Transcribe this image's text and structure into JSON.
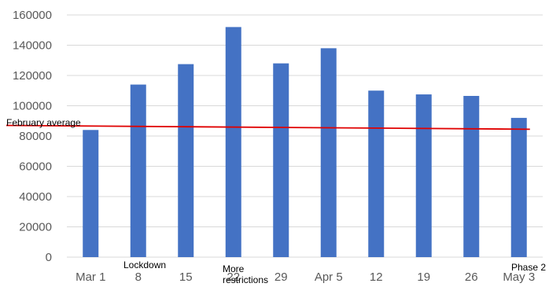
{
  "chart_data": {
    "type": "bar",
    "title": "",
    "xlabel": "",
    "ylabel": "",
    "categories": [
      "Mar 1",
      "8",
      "15",
      "22",
      "29",
      "Apr 5",
      "12",
      "19",
      "26",
      "May 3"
    ],
    "values": [
      84000,
      114000,
      127500,
      152000,
      128000,
      138000,
      110000,
      107500,
      106500,
      92000
    ],
    "ylim": [
      0,
      160000
    ],
    "yticks": [
      0,
      20000,
      40000,
      60000,
      80000,
      100000,
      120000,
      140000,
      160000
    ],
    "grid": true,
    "bar_color": "#4472c4",
    "reference_line": {
      "label": "February average",
      "start_value": 87000,
      "end_value": 84500,
      "color": "#e00000"
    },
    "annotations": [
      {
        "category": "8",
        "text": "Lockdown"
      },
      {
        "category": "22",
        "text": "More restrictions"
      },
      {
        "category": "May 3",
        "text": "Phase 2"
      }
    ]
  }
}
